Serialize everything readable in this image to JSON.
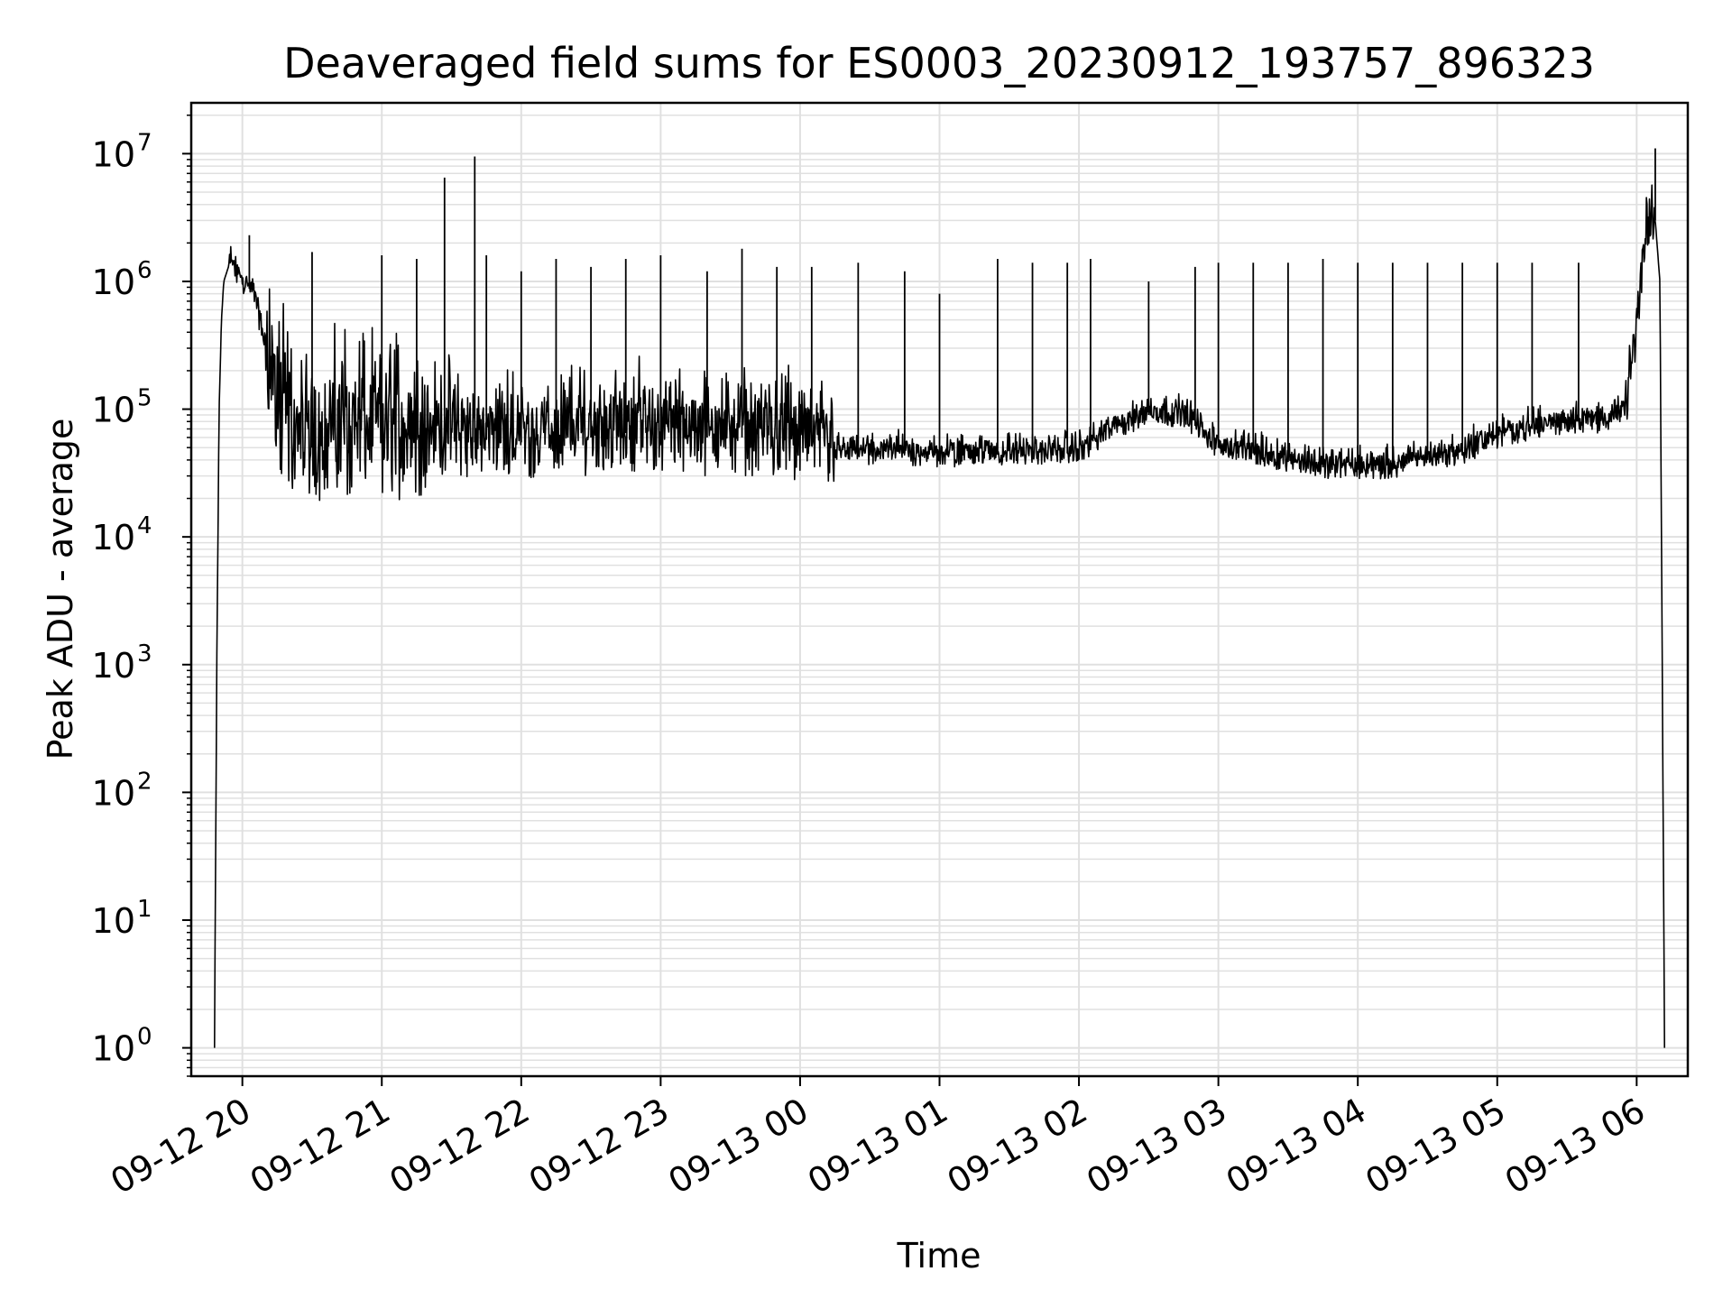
{
  "chart_data": {
    "type": "line",
    "title": "Deaveraged field sums for ES0003_20230912_193757_896323",
    "xlabel": "Time",
    "ylabel": "Peak ADU - average",
    "y_scale": "log",
    "ylim": [
      0.6,
      25000000
    ],
    "xlim": [
      "09-12 19:38",
      "09-13 06:22"
    ],
    "grid": "on (major and minor, light gray)",
    "legend": "none",
    "line_color": "#000000",
    "grid_color": "#e0e0e0",
    "x_ticks": [
      "09-12 20",
      "09-12 21",
      "09-12 22",
      "09-12 23",
      "09-13 00",
      "09-13 01",
      "09-13 02",
      "09-13 03",
      "09-13 04",
      "09-13 05",
      "09-13 06"
    ],
    "y_ticks": [
      {
        "base": "10",
        "exp": "0"
      },
      {
        "base": "10",
        "exp": "1"
      },
      {
        "base": "10",
        "exp": "2"
      },
      {
        "base": "10",
        "exp": "3"
      },
      {
        "base": "10",
        "exp": "4"
      },
      {
        "base": "10",
        "exp": "5"
      },
      {
        "base": "10",
        "exp": "6"
      },
      {
        "base": "10",
        "exp": "7"
      }
    ],
    "series": [
      {
        "x": [
          "09-12 19:48",
          "09-12 19:49",
          "09-12 19:50",
          "09-12 19:51",
          "09-12 19:52",
          "09-12 19:54",
          "09-12 19:56",
          "09-12 19:58",
          "09-12 20:00",
          "09-12 20:05",
          "09-12 20:10",
          "09-12 20:15",
          "09-12 20:20",
          "09-12 20:25",
          "09-12 20:30",
          "09-12 20:40",
          "09-12 20:50",
          "09-12 21:00",
          "09-12 21:10",
          "09-12 21:20",
          "09-12 21:30",
          "09-12 21:40",
          "09-12 21:50",
          "09-12 22:00",
          "09-12 22:15",
          "09-12 22:30",
          "09-12 22:45",
          "09-12 23:00",
          "09-12 23:15",
          "09-12 23:30",
          "09-12 23:45",
          "09-13 00:00",
          "09-13 00:15",
          "09-13 00:30",
          "09-13 00:45",
          "09-13 01:00",
          "09-13 01:15",
          "09-13 01:30",
          "09-13 01:45",
          "09-13 02:00",
          "09-13 02:15",
          "09-13 02:30",
          "09-13 02:45",
          "09-13 03:00",
          "09-13 03:15",
          "09-13 03:30",
          "09-13 03:45",
          "09-13 04:00",
          "09-13 04:15",
          "09-13 04:30",
          "09-13 04:45",
          "09-13 05:00",
          "09-13 05:15",
          "09-13 05:30",
          "09-13 05:45",
          "09-13 05:55",
          "09-13 06:00",
          "09-13 06:03",
          "09-13 06:06",
          "09-13 06:08",
          "09-13 06:10",
          "09-13 06:11",
          "09-13 06:12"
        ],
        "y": [
          1,
          1000,
          100000,
          500000,
          1000000,
          1300000,
          1300000,
          1100000,
          1000000,
          800000,
          300000,
          100000,
          60000,
          50000,
          50000,
          60000,
          60000,
          55000,
          55000,
          60000,
          60000,
          55000,
          60000,
          55000,
          60000,
          60000,
          65000,
          65000,
          60000,
          60000,
          60000,
          55000,
          45000,
          45000,
          45000,
          42000,
          45000,
          45000,
          45000,
          45000,
          70000,
          90000,
          90000,
          50000,
          45000,
          40000,
          35000,
          35000,
          35000,
          40000,
          45000,
          60000,
          70000,
          80000,
          80000,
          90000,
          400000,
          1500000,
          3000000,
          3000000,
          1000000,
          1000,
          1
        ]
      }
    ],
    "spikes": [
      {
        "x": "09-12 20:03",
        "y": 2300000
      },
      {
        "x": "09-12 20:30",
        "y": 1700000
      },
      {
        "x": "09-12 21:00",
        "y": 1600000
      },
      {
        "x": "09-12 21:15",
        "y": 1500000
      },
      {
        "x": "09-12 21:27",
        "y": 6500000
      },
      {
        "x": "09-12 21:40",
        "y": 9500000
      },
      {
        "x": "09-12 21:45",
        "y": 1600000
      },
      {
        "x": "09-12 22:00",
        "y": 1200000
      },
      {
        "x": "09-12 22:15",
        "y": 1500000
      },
      {
        "x": "09-12 22:30",
        "y": 1300000
      },
      {
        "x": "09-12 22:45",
        "y": 1500000
      },
      {
        "x": "09-12 23:00",
        "y": 1600000
      },
      {
        "x": "09-12 23:20",
        "y": 1200000
      },
      {
        "x": "09-12 23:35",
        "y": 1800000
      },
      {
        "x": "09-12 23:50",
        "y": 1300000
      },
      {
        "x": "09-13 00:05",
        "y": 1300000
      },
      {
        "x": "09-13 00:25",
        "y": 1400000
      },
      {
        "x": "09-13 00:45",
        "y": 1200000
      },
      {
        "x": "09-13 01:00",
        "y": 800000
      },
      {
        "x": "09-13 01:25",
        "y": 1500000
      },
      {
        "x": "09-13 01:40",
        "y": 1400000
      },
      {
        "x": "09-13 01:55",
        "y": 1400000
      },
      {
        "x": "09-13 02:05",
        "y": 1500000
      },
      {
        "x": "09-13 02:30",
        "y": 1000000
      },
      {
        "x": "09-13 02:50",
        "y": 1300000
      },
      {
        "x": "09-13 03:00",
        "y": 1400000
      },
      {
        "x": "09-13 03:15",
        "y": 1400000
      },
      {
        "x": "09-13 03:30",
        "y": 1400000
      },
      {
        "x": "09-13 03:45",
        "y": 1500000
      },
      {
        "x": "09-13 04:00",
        "y": 1400000
      },
      {
        "x": "09-13 04:15",
        "y": 1400000
      },
      {
        "x": "09-13 04:30",
        "y": 1400000
      },
      {
        "x": "09-13 04:45",
        "y": 1400000
      },
      {
        "x": "09-13 05:00",
        "y": 1400000
      },
      {
        "x": "09-13 05:15",
        "y": 1400000
      },
      {
        "x": "09-13 05:35",
        "y": 1400000
      },
      {
        "x": "09-13 06:08",
        "y": 11000000
      }
    ]
  }
}
